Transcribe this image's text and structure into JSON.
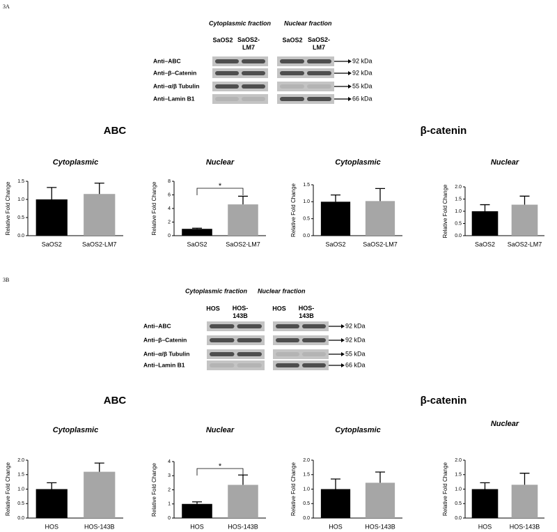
{
  "panels": [
    {
      "label": "3A",
      "fractions": [
        "Cytoplasmic fraction",
        "Nuclear fraction"
      ],
      "lanes": [
        [
          "SaOS2",
          "SaOS2-LM7"
        ],
        [
          "SaOS2",
          "SaOS2-LM7"
        ]
      ],
      "rows": [
        {
          "label": "Anti–ABC",
          "size": "92 kDa"
        },
        {
          "label": "Anti–β–Catenin",
          "size": "92 kDa"
        },
        {
          "label": "Anti–α/β Tubulin",
          "size": "55 kDa"
        },
        {
          "label": "Anti–Lamin B1",
          "size": "66 kDa"
        }
      ],
      "groups": [
        "ABC",
        "β-catenin"
      ]
    },
    {
      "label": "3B",
      "fractions": [
        "Cytoplasmic fraction",
        "Nuclear fraction"
      ],
      "lanes": [
        [
          "HOS",
          "HOS-143B"
        ],
        [
          "HOS",
          "HOS-143B"
        ]
      ],
      "rows": [
        {
          "label": "Anti–ABC",
          "size": "92 kDa"
        },
        {
          "label": "Anti–β–Catenin",
          "size": "92 kDa"
        },
        {
          "label": "Anti–α/β Tubulin",
          "size": "55 kDa"
        },
        {
          "label": "Anti–Lamin B1",
          "size": "66 kDa"
        }
      ],
      "groups": [
        "ABC",
        "β-catenin"
      ]
    }
  ],
  "chart_data": [
    {
      "type": "bar",
      "title": "Cytoplasmic",
      "ylabel": "Relative Fold Change",
      "categories": [
        "SaOS2",
        "SaOS2-LM7"
      ],
      "values": [
        1.0,
        1.15
      ],
      "errors": [
        0.33,
        0.3
      ],
      "colors": [
        "#000000",
        "#a6a6a6"
      ],
      "ylim": [
        0,
        1.5
      ],
      "yticks": [
        {
          "value": 0,
          "label": "0.0"
        },
        {
          "value": 0.5,
          "label": "0.5"
        },
        {
          "value": 1,
          "label": "1.0"
        },
        {
          "value": 1.5,
          "label": "1.5"
        }
      ]
    },
    {
      "type": "bar",
      "title": "Nuclear",
      "ylabel": "Relative Fold Change",
      "categories": [
        "SaOS2",
        "SaOS2-LM7"
      ],
      "values": [
        1.0,
        4.6
      ],
      "errors": [
        0.1,
        1.2
      ],
      "colors": [
        "#000000",
        "#a6a6a6"
      ],
      "ylim": [
        0,
        8
      ],
      "yticks": [
        0,
        2,
        4,
        6,
        8
      ],
      "annotation": "*"
    },
    {
      "type": "bar",
      "title": "Cytoplasmic",
      "ylabel": "Relative Fold Change",
      "categories": [
        "SaOS2",
        "SaOS2-LM7"
      ],
      "values": [
        1.0,
        1.02
      ],
      "errors": [
        0.2,
        0.37
      ],
      "colors": [
        "#000000",
        "#a6a6a6"
      ],
      "ylim": [
        0,
        1.5
      ],
      "yticks": [
        {
          "value": 0,
          "label": "0.0"
        },
        {
          "value": 0.5,
          "label": "0.5"
        },
        {
          "value": 1,
          "label": "1.0"
        },
        {
          "value": 1.5,
          "label": "1.5"
        }
      ]
    },
    {
      "type": "bar",
      "title": "Nuclear",
      "ylabel": "Relative Fold Change",
      "categories": [
        "SaOS2",
        "SaOS2-LM7"
      ],
      "values": [
        1.0,
        1.27
      ],
      "errors": [
        0.27,
        0.35
      ],
      "colors": [
        "#000000",
        "#a6a6a6"
      ],
      "ylim": [
        0,
        2
      ],
      "yticks": [
        {
          "value": 0,
          "label": "0.0"
        },
        {
          "value": 0.5,
          "label": "0.5"
        },
        {
          "value": 1,
          "label": "1.0"
        },
        {
          "value": 1.5,
          "label": "1.5"
        },
        {
          "value": 2,
          "label": "2.0"
        }
      ]
    },
    {
      "type": "bar",
      "title": "Cytoplasmic",
      "ylabel": "Relative Fold Change",
      "categories": [
        "HOS",
        "HOS-143B"
      ],
      "values": [
        1.0,
        1.6
      ],
      "errors": [
        0.22,
        0.3
      ],
      "colors": [
        "#000000",
        "#a6a6a6"
      ],
      "ylim": [
        0,
        2
      ],
      "yticks": [
        {
          "value": 0,
          "label": "0.0"
        },
        {
          "value": 0.5,
          "label": "0.5"
        },
        {
          "value": 1,
          "label": "1.0"
        },
        {
          "value": 1.5,
          "label": "1.5"
        },
        {
          "value": 2,
          "label": "2.0"
        }
      ]
    },
    {
      "type": "bar",
      "title": "Nuclear",
      "ylabel": "Relative Fold Change",
      "categories": [
        "HOS",
        "HOS-143B"
      ],
      "values": [
        1.0,
        2.35
      ],
      "errors": [
        0.15,
        0.7
      ],
      "colors": [
        "#000000",
        "#a6a6a6"
      ],
      "ylim": [
        0,
        4
      ],
      "yticks": [
        0,
        1,
        2,
        3,
        4
      ],
      "annotation": "*"
    },
    {
      "type": "bar",
      "title": "Cytoplasmic",
      "ylabel": "Relative Fold Change",
      "categories": [
        "HOS",
        "HOS-143B"
      ],
      "values": [
        1.0,
        1.22
      ],
      "errors": [
        0.35,
        0.37
      ],
      "colors": [
        "#000000",
        "#a6a6a6"
      ],
      "ylim": [
        0,
        2
      ],
      "yticks": [
        {
          "value": 0,
          "label": "0.0"
        },
        {
          "value": 0.5,
          "label": "0.5"
        },
        {
          "value": 1,
          "label": "1.0"
        },
        {
          "value": 1.5,
          "label": "1.5"
        },
        {
          "value": 2,
          "label": "2.0"
        }
      ]
    },
    {
      "type": "bar",
      "title": "Nuclear",
      "ylabel": "Relative Fold Change",
      "categories": [
        "HOS",
        "HOS-143B"
      ],
      "values": [
        1.0,
        1.15
      ],
      "errors": [
        0.22,
        0.4
      ],
      "colors": [
        "#000000",
        "#a6a6a6"
      ],
      "ylim": [
        0,
        2
      ],
      "yticks": [
        {
          "value": 0,
          "label": "0.0"
        },
        {
          "value": 0.5,
          "label": "0.5"
        },
        {
          "value": 1,
          "label": "1.0"
        },
        {
          "value": 1.5,
          "label": "1.5"
        },
        {
          "value": 2,
          "label": "2.0"
        }
      ]
    }
  ]
}
